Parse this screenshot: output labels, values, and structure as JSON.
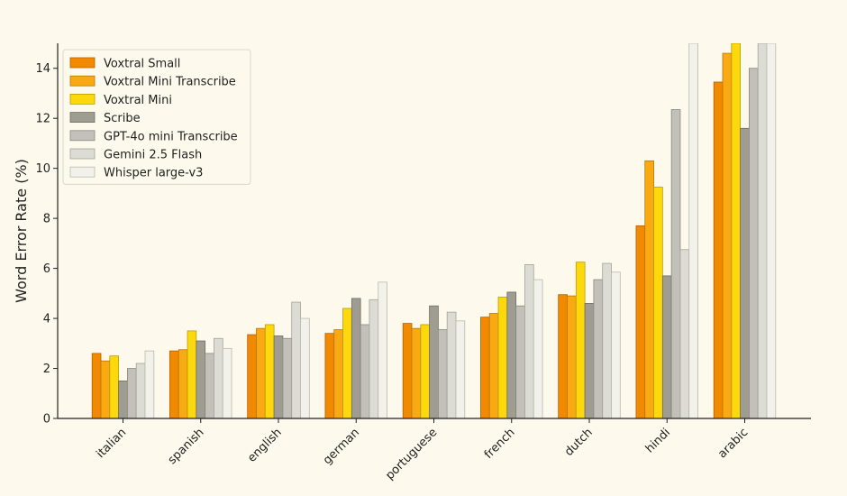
{
  "chart_data": {
    "type": "bar",
    "title": "",
    "xlabel": "",
    "ylabel": "Word Error Rate (%)",
    "ylim": [
      0,
      15
    ],
    "yticks": [
      0,
      2,
      4,
      6,
      8,
      10,
      12,
      14
    ],
    "grid": false,
    "legend_position": "top-left",
    "categories": [
      "italian",
      "spanish",
      "english",
      "german",
      "portuguese",
      "french",
      "dutch",
      "hindi",
      "arabic"
    ],
    "series": [
      {
        "name": "Voxtral Small",
        "color": "#f18a00",
        "edge": "#b35f00",
        "values": [
          2.6,
          2.7,
          3.35,
          3.4,
          3.8,
          4.05,
          4.95,
          7.7,
          13.45
        ]
      },
      {
        "name": "Voxtral Mini Transcribe",
        "color": "#f9a912",
        "edge": "#b8790a",
        "values": [
          2.3,
          2.75,
          3.6,
          3.55,
          3.6,
          4.2,
          4.9,
          10.3,
          14.6
        ]
      },
      {
        "name": "Voxtral Mini",
        "color": "#fcd80c",
        "edge": "#b89e08",
        "values": [
          2.5,
          3.5,
          3.75,
          4.4,
          3.75,
          4.85,
          6.25,
          9.25,
          15.3
        ]
      },
      {
        "name": "Scribe",
        "color": "#9f9c92",
        "edge": "#6f6d66",
        "values": [
          1.5,
          3.1,
          3.3,
          4.8,
          4.5,
          5.05,
          4.6,
          5.7,
          11.6
        ]
      },
      {
        "name": "GPT-4o mini Transcribe",
        "color": "#c2c0b9",
        "edge": "#8a8882",
        "values": [
          2.0,
          2.6,
          3.2,
          3.75,
          3.55,
          4.5,
          5.55,
          12.35,
          14.0
        ]
      },
      {
        "name": "Gemini 2.5 Flash",
        "color": "#dcdbd4",
        "edge": "#a3a29c",
        "values": [
          2.2,
          3.2,
          4.65,
          4.75,
          4.25,
          6.15,
          6.2,
          6.75,
          15.3
        ]
      },
      {
        "name": "Whisper large-v3",
        "color": "#f3f2ea",
        "edge": "#b9b8b0",
        "values": [
          2.7,
          2.8,
          4.0,
          5.45,
          3.9,
          5.55,
          5.85,
          15.3,
          15.3
        ]
      }
    ]
  }
}
